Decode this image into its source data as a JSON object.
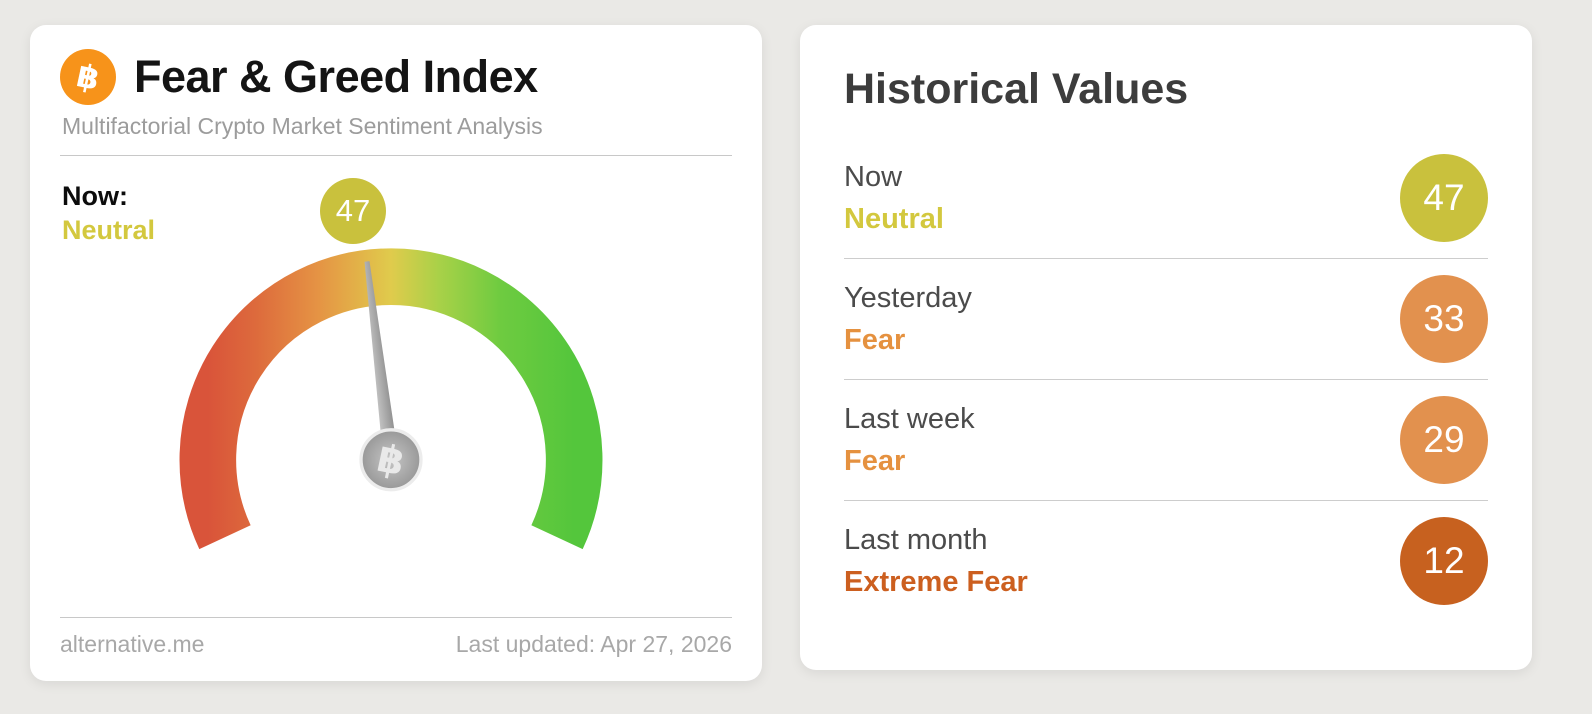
{
  "left_card": {
    "title": "Fear & Greed Index",
    "subtitle": "Multifactorial Crypto Market Sentiment Analysis",
    "now_label": "Now:",
    "now_sentiment": "Neutral",
    "now_value": "47",
    "source": "alternative.me",
    "last_updated": "Last updated: Apr 27, 2026"
  },
  "gauge": {
    "value": 47,
    "min": 0,
    "max": 100,
    "span_degrees": 230
  },
  "right_card": {
    "title": "Historical Values",
    "rows": [
      {
        "label": "Now",
        "sentiment": "Neutral",
        "value": "47",
        "badge_color": "#c9c13d",
        "sentiment_color": "#d3c83e"
      },
      {
        "label": "Yesterday",
        "sentiment": "Fear",
        "value": "33",
        "badge_color": "#e2914e",
        "sentiment_color": "#e5913f"
      },
      {
        "label": "Last week",
        "sentiment": "Fear",
        "value": "29",
        "badge_color": "#e2914e",
        "sentiment_color": "#e5913f"
      },
      {
        "label": "Last month",
        "sentiment": "Extreme Fear",
        "value": "12",
        "badge_color": "#c7611f",
        "sentiment_color": "#cc5f1f"
      }
    ]
  },
  "colors": {
    "bitcoin_orange": "#f7931a",
    "neutral_text": "#d3c83e",
    "neutral_badge": "#c9c13d",
    "fear_orange": "#e5913f",
    "extreme_fear_orange": "#cc5f1f",
    "gauge_gradient": [
      "#d9543a",
      "#dd6a3c",
      "#e59344",
      "#e0cb4c",
      "#a9d148",
      "#6ecb40",
      "#54c63c"
    ]
  },
  "chart_data": {
    "type": "gauge",
    "title": "Fear & Greed Index",
    "value": 47,
    "min": 0,
    "max": 100,
    "classification": "Neutral",
    "historical": [
      {
        "period": "Now",
        "classification": "Neutral",
        "value": 47
      },
      {
        "period": "Yesterday",
        "classification": "Fear",
        "value": 33
      },
      {
        "period": "Last week",
        "classification": "Fear",
        "value": 29
      },
      {
        "period": "Last month",
        "classification": "Extreme Fear",
        "value": 12
      }
    ]
  }
}
